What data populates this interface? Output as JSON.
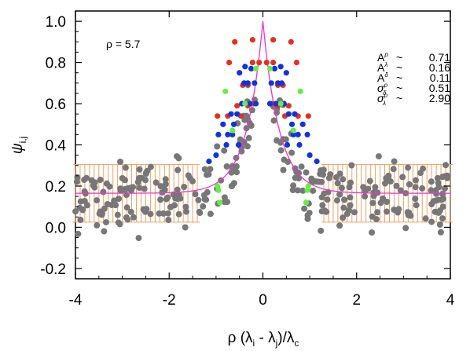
{
  "chart_data": {
    "type": "scatter",
    "xlabel_main": "ρ (λ",
    "xlabel_sub_i": "i",
    "xlabel_mid": " - λ",
    "xlabel_sub_j": "j",
    "xlabel_end": ")/λ",
    "xlabel_sub_c": "c",
    "ylabel_main": "ψ",
    "ylabel_sub": "i,j",
    "xlim": [
      -4,
      4
    ],
    "ylim": [
      -0.25,
      1.05
    ],
    "xticks": [
      -4,
      -2,
      0,
      2,
      4
    ],
    "xtick_labels": [
      "-4",
      "-2",
      "0",
      "2",
      "4"
    ],
    "yticks": [
      -0.2,
      0.0,
      0.2,
      0.4,
      0.6,
      0.8,
      1.0
    ],
    "ytick_labels": [
      "-0.2",
      "0.0",
      "0.2",
      "0.4",
      "0.6",
      "0.8",
      "1.0"
    ],
    "rho_label": "ρ = 5.7",
    "params": [
      {
        "sym": "A",
        "sup": "ρ",
        "val": "0.71"
      },
      {
        "sym": "A",
        "sup": "λ",
        "val": "0.16"
      },
      {
        "sym": "A",
        "sup": "δ",
        "val": "0.11"
      },
      {
        "sym": "σ",
        "sup": "ρ",
        "sub": "δ",
        "val": "0.51"
      },
      {
        "sym": "σ",
        "sup": "ρ",
        "sub": "λ",
        "val": "2.90"
      }
    ],
    "approx": "~",
    "colors": {
      "gray": "#777777",
      "red": "#dd3322",
      "blue": "#1133dd",
      "green": "#66ee44",
      "model": "#ee33cc",
      "errorbar": "#f0a060"
    },
    "series": [
      {
        "color": "red",
        "x": [
          -0.22,
          -0.22,
          -0.08,
          -0.32,
          -0.32,
          -0.2,
          -0.55,
          -0.43,
          -0.75,
          -0.47,
          -0.97,
          -0.72,
          -0.6,
          0.22,
          0.22,
          0.08,
          0.32,
          0.32,
          0.2,
          0.55,
          0.43,
          0.75,
          0.47,
          0.97,
          0.72,
          0.6
        ],
        "y": [
          0.91,
          0.8,
          0.8,
          0.69,
          0.59,
          0.6,
          0.59,
          0.69,
          0.54,
          0.54,
          0.54,
          0.8,
          0.9,
          0.91,
          0.8,
          0.8,
          0.69,
          0.59,
          0.6,
          0.59,
          0.69,
          0.54,
          0.54,
          0.54,
          0.8,
          0.9
        ]
      },
      {
        "color": "blue",
        "x": [
          -0.15,
          -0.28,
          -0.18,
          -0.32,
          -0.4,
          -0.5,
          -0.45,
          -0.55,
          -0.62,
          -0.68,
          -0.75,
          -0.85,
          -0.95,
          -1.0,
          -1.15,
          -0.52,
          -0.65,
          -0.78,
          -0.38,
          -0.25,
          0.15,
          0.28,
          0.18,
          0.32,
          0.4,
          0.5,
          0.45,
          0.55,
          0.62,
          0.68,
          0.75,
          0.85,
          0.95,
          1.0,
          1.15,
          0.52,
          0.65,
          0.78,
          0.38,
          0.25
        ],
        "y": [
          0.6,
          0.6,
          0.7,
          0.7,
          0.7,
          0.75,
          0.6,
          0.55,
          0.5,
          0.55,
          0.45,
          0.5,
          0.45,
          0.35,
          0.32,
          0.4,
          0.45,
          0.4,
          0.78,
          0.77,
          0.6,
          0.6,
          0.7,
          0.7,
          0.7,
          0.75,
          0.6,
          0.55,
          0.5,
          0.55,
          0.45,
          0.5,
          0.45,
          0.35,
          0.32,
          0.4,
          0.45,
          0.4,
          0.78,
          0.77
        ]
      },
      {
        "color": "green",
        "x": [
          -0.15,
          -0.38,
          -0.8,
          -0.65,
          -0.97,
          -0.95,
          -0.92,
          0.15,
          0.38,
          0.8,
          0.65,
          0.97,
          0.95,
          0.92
        ],
        "y": [
          0.77,
          0.6,
          0.66,
          0.47,
          0.2,
          0.18,
          0.12,
          0.77,
          0.6,
          0.66,
          0.47,
          0.2,
          0.18,
          0.12
        ]
      }
    ],
    "gray_scatter": {
      "color": "gray",
      "spread": 0.1
    },
    "model_line": {
      "color": "model",
      "baseline": 0.165,
      "peak": 1.0,
      "scale": 0.35
    },
    "binned_errorbars": {
      "color": "errorbar",
      "x_start": -4.0,
      "x_end": 4.0,
      "step": 0.1,
      "center": 0.165,
      "halfwidth": 0.14,
      "inner_limit": 1.3
    }
  }
}
